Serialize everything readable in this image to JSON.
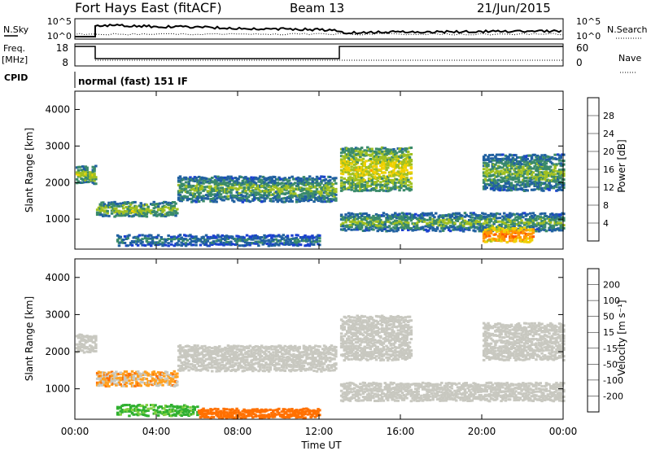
{
  "header": {
    "station": "Fort Hays East (fitACF)",
    "beam": "Beam 13",
    "date": "21/Jun/2015"
  },
  "noise_panel": {
    "left_label": "N.Sky",
    "left_ticks": [
      "10^5",
      "10^0"
    ],
    "right_ticks": [
      "10^5",
      "10^0"
    ],
    "right_label": "N.Search"
  },
  "freq_panel": {
    "left_label_top": "Freq.",
    "left_label_unit": "[MHz]",
    "left_ticks": [
      "18",
      "8"
    ],
    "right_ticks": [
      "60",
      "0"
    ],
    "right_label": "Nave"
  },
  "cpid": {
    "label": "CPID",
    "value": "normal (fast) 151 IF"
  },
  "x_axis": {
    "ticks": [
      "00:00",
      "04:00",
      "08:00",
      "12:00",
      "16:00",
      "20:00",
      "00:00"
    ],
    "label": "Time UT"
  },
  "power_colorbar": {
    "label": "Power [dB]",
    "ticks": [
      "28",
      "24",
      "20",
      "16",
      "12",
      "8",
      "4"
    ],
    "colors": [
      "#e00000",
      "#ff5a00",
      "#ff9600",
      "#f0d000",
      "#a0c020",
      "#3a8a6a",
      "#2060a0",
      "#1a40d0"
    ]
  },
  "velocity_colorbar": {
    "label": "Velocity [m s⁻¹]",
    "ticks": [
      "200",
      "100",
      "50",
      "15",
      "-15",
      "-50",
      "-100",
      "-200"
    ],
    "colors": [
      "#2040c0",
      "#1a6a50",
      "#30b030",
      "#80d040",
      "#c8c8c0",
      "#ffa020",
      "#ff7000",
      "#ff3a00",
      "#e00000"
    ]
  },
  "chart_data": [
    {
      "type": "heatmap",
      "title": "",
      "xlabel": "Time UT",
      "ylabel": "Slant Range [km]",
      "xlim": [
        0,
        24
      ],
      "ylim": [
        180,
        4500
      ],
      "yticks": [
        1000,
        2000,
        3000,
        4000
      ],
      "value_label": "Power [dB]",
      "bands": [
        {
          "t": [
            0,
            1
          ],
          "range": [
            2000,
            2500
          ],
          "power": 16
        },
        {
          "t": [
            1,
            5
          ],
          "range": [
            1100,
            1500
          ],
          "power": 16
        },
        {
          "t": [
            5,
            12.8
          ],
          "range": [
            1500,
            2200
          ],
          "power": 14
        },
        {
          "t": [
            2,
            12
          ],
          "range": [
            300,
            600
          ],
          "power": 12
        },
        {
          "t": [
            13,
            16.5
          ],
          "range": [
            1800,
            3000
          ],
          "power": 18
        },
        {
          "t": [
            13,
            24
          ],
          "range": [
            700,
            1200
          ],
          "power": 14
        },
        {
          "t": [
            20,
            22.5
          ],
          "range": [
            400,
            800
          ],
          "power": 26
        },
        {
          "t": [
            20,
            24
          ],
          "range": [
            1800,
            2800
          ],
          "power": 14
        }
      ]
    },
    {
      "type": "heatmap",
      "title": "",
      "xlabel": "Time UT",
      "ylabel": "Slant Range [km]",
      "xlim": [
        0,
        24
      ],
      "ylim": [
        180,
        4500
      ],
      "yticks": [
        1000,
        2000,
        3000,
        4000
      ],
      "value_label": "Velocity [m s⁻¹]",
      "bands": [
        {
          "t": [
            0,
            1
          ],
          "range": [
            2000,
            2500
          ],
          "velocity": 0
        },
        {
          "t": [
            1,
            5
          ],
          "range": [
            1100,
            1500
          ],
          "velocity": -20
        },
        {
          "t": [
            5,
            12.8
          ],
          "range": [
            1500,
            2200
          ],
          "velocity": 0
        },
        {
          "t": [
            2,
            6
          ],
          "range": [
            300,
            600
          ],
          "velocity": 40
        },
        {
          "t": [
            6,
            12
          ],
          "range": [
            250,
            500
          ],
          "velocity": -60
        },
        {
          "t": [
            13,
            16.5
          ],
          "range": [
            1800,
            3000
          ],
          "velocity": 0
        },
        {
          "t": [
            13,
            24
          ],
          "range": [
            700,
            1200
          ],
          "velocity": 0
        },
        {
          "t": [
            20,
            24
          ],
          "range": [
            1800,
            2800
          ],
          "velocity": 0
        }
      ]
    }
  ]
}
